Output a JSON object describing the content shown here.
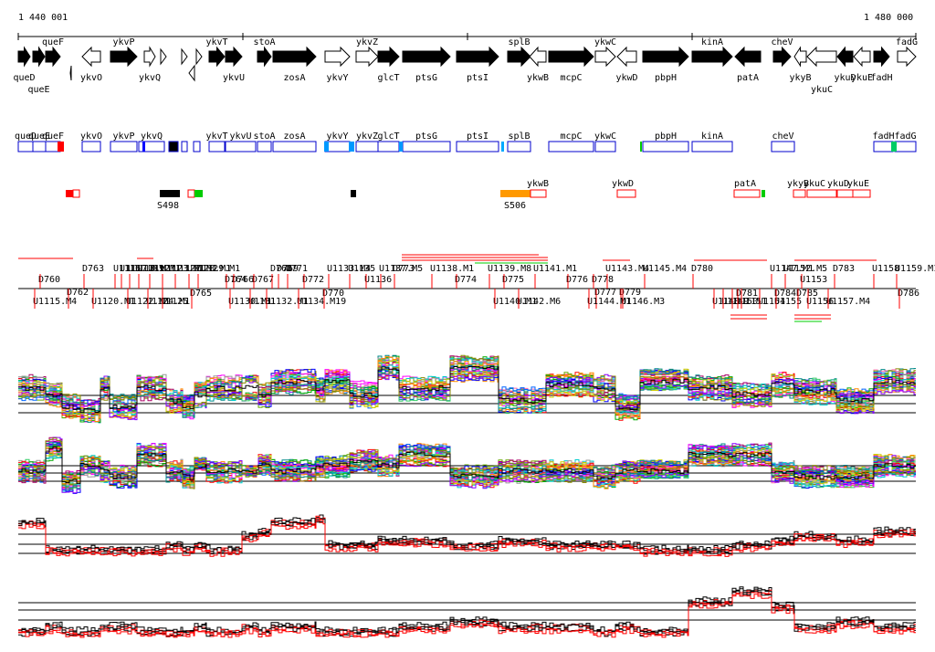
{
  "coords": {
    "start": "1 440 001",
    "end": "1 480 000"
  },
  "genes": [
    {
      "name": "queD",
      "strand": "+",
      "fill": "black",
      "label": "below"
    },
    {
      "name": "queE",
      "strand": "+",
      "fill": "black",
      "label": "below2"
    },
    {
      "name": "queF",
      "strand": "+",
      "fill": "black",
      "label": "above"
    },
    {
      "name": "ykvO",
      "strand": "-",
      "fill": "white",
      "label": "below"
    },
    {
      "name": "ykvP",
      "strand": "+",
      "fill": "black",
      "label": "above"
    },
    {
      "name": "ykvQ",
      "strand": "+",
      "fill": "white",
      "label": "below"
    },
    {
      "name": "ykvT",
      "strand": "+",
      "fill": "black",
      "label": "above"
    },
    {
      "name": "ykvU",
      "strand": "+",
      "fill": "black",
      "label": "below"
    },
    {
      "name": "stoA",
      "strand": "+",
      "fill": "black",
      "label": "above"
    },
    {
      "name": "zosA",
      "strand": "+",
      "fill": "black",
      "label": "below"
    },
    {
      "name": "ykvY",
      "strand": "+",
      "fill": "white",
      "label": "below"
    },
    {
      "name": "ykvZ",
      "strand": "+",
      "fill": "white",
      "label": "above"
    },
    {
      "name": "glcT",
      "strand": "+",
      "fill": "black",
      "label": "below"
    },
    {
      "name": "ptsG",
      "strand": "+",
      "fill": "black",
      "label": "below"
    },
    {
      "name": "ptsI",
      "strand": "+",
      "fill": "black",
      "label": "below"
    },
    {
      "name": "splB",
      "strand": "+",
      "fill": "black",
      "label": "above"
    },
    {
      "name": "ykwB",
      "strand": "-",
      "fill": "white",
      "label": "below"
    },
    {
      "name": "mcpC",
      "strand": "+",
      "fill": "black",
      "label": "below"
    },
    {
      "name": "ykwC",
      "strand": "+",
      "fill": "white",
      "label": "above"
    },
    {
      "name": "ykwD",
      "strand": "-",
      "fill": "white",
      "label": "below"
    },
    {
      "name": "pbpH",
      "strand": "+",
      "fill": "black",
      "label": "below"
    },
    {
      "name": "kinA",
      "strand": "+",
      "fill": "black",
      "label": "above"
    },
    {
      "name": "patA",
      "strand": "-",
      "fill": "black",
      "label": "below"
    },
    {
      "name": "cheV",
      "strand": "+",
      "fill": "black",
      "label": "above"
    },
    {
      "name": "ykyB",
      "strand": "-",
      "fill": "white",
      "label": "below"
    },
    {
      "name": "ykuC",
      "strand": "-",
      "fill": "white",
      "label": "below2"
    },
    {
      "name": "ykuD",
      "strand": "-",
      "fill": "black",
      "label": "below"
    },
    {
      "name": "ykuE",
      "strand": "-",
      "fill": "white",
      "label": "below"
    },
    {
      "name": "fadH",
      "strand": "+",
      "fill": "black",
      "label": "below"
    },
    {
      "name": "fadG",
      "strand": "+",
      "fill": "white",
      "label": "above"
    }
  ],
  "feature_track": {
    "labels": [
      "queD",
      "queE",
      "queF",
      "ykvO",
      "ykvP",
      "ykvQ",
      "ykvT",
      "ykvU",
      "stoA",
      "zosA",
      "ykvY",
      "ykvZ",
      "glcT",
      "ptsG",
      "ptsI",
      "splB",
      "mcpC",
      "ykwC",
      "pbpH",
      "kinA",
      "cheV",
      "fadH",
      "fadG"
    ]
  },
  "segments": {
    "labels": [
      "S498",
      "S506",
      "ykwB",
      "ykwD",
      "patA",
      "ykyB",
      "ykuC",
      "ykuD",
      "ykuE"
    ]
  },
  "upper_features": [
    "D760",
    "D763",
    "U1116",
    "U1117.M1",
    "U1118.M1",
    "U1119.M1",
    "U1121",
    "U1123.M1",
    "U1127.M1",
    "U1128.M1",
    "U1129.M1",
    "D764",
    "D766",
    "D767",
    "D768",
    "D769",
    "D771",
    "D772",
    "U1133.M4",
    "U1135",
    "U1136",
    "U1137.M5",
    "D773",
    "U1138.M1",
    "D774",
    "U1139.M8",
    "D775",
    "U1141.M1",
    "D776",
    "D778",
    "U1143.M4",
    "U1145.M4",
    "D780",
    "U1147.M1",
    "U1152.M5",
    "U1153",
    "D783",
    "U1158",
    "U1159.M1"
  ],
  "lower_features": [
    "U1115.M4",
    "D762",
    "U1120.M1",
    "U1122.M1",
    "U1124.M1",
    "U1125",
    "D765",
    "U1130.M1",
    "U1131",
    "U1132.M1",
    "U1134.M19",
    "D770",
    "U1140.M1",
    "U1142.M6",
    "D777",
    "D779",
    "U1144.M1",
    "U1146.M3",
    "U1148",
    "U1149",
    "U1150",
    "U1151",
    "D781",
    "U1154",
    "U1155",
    "D784",
    "D785",
    "U1156",
    "U1157.M4",
    "D786"
  ],
  "colors": {
    "gene_black": "#000000",
    "feature_blue": "#0000cc",
    "feature_red": "#ff0000",
    "segment_orange": "#ff9900",
    "segment_green": "#00cc00",
    "axis": "#000000",
    "expr_black": "#000000",
    "expr_red": "#ff0000"
  },
  "expression_panels": [
    {
      "id": "panel-1",
      "kind": "multicolor"
    },
    {
      "id": "panel-2",
      "kind": "multicolor"
    },
    {
      "id": "panel-3",
      "kind": "red-black"
    },
    {
      "id": "panel-4",
      "kind": "red-black"
    }
  ]
}
